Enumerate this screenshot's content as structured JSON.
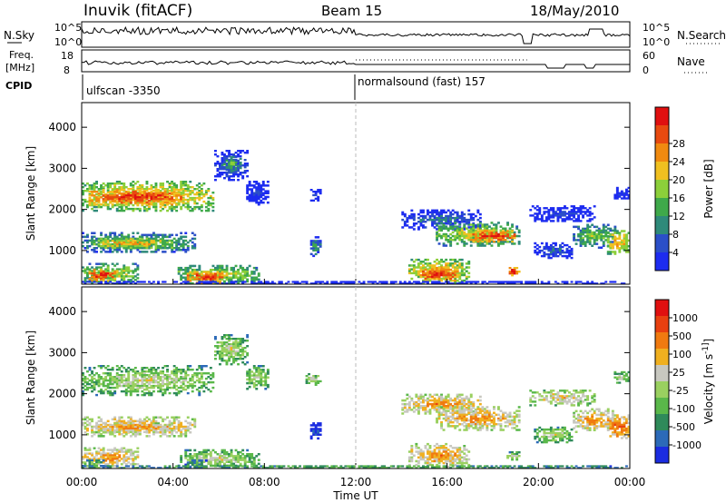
{
  "header": {
    "station": "Inuvik  (fitACF)",
    "beam": "Beam 15",
    "date": "18/May/2010"
  },
  "params": {
    "nsky_label": "N.Sky",
    "nsearch_label": "N.Search",
    "freq_label_1": "Freq.",
    "freq_label_2": "[MHz]",
    "nave_label": "Nave",
    "cpid_label": "CPID",
    "left_top_tick_a": "10^5",
    "left_top_tick_b": "10^0",
    "right_top_tick_a": "10^5",
    "right_top_tick_b": "10^0",
    "freq_tick_a": "18",
    "freq_tick_b": "8",
    "nave_tick_a": "60",
    "nave_tick_b": "0",
    "cpid_1": "ulfscan -3350",
    "cpid_2": "normalsound (fast) 157"
  },
  "colors": {
    "power": [
      "#1d2cf0",
      "#2b4fc8",
      "#2f8a7a",
      "#3fa94a",
      "#8ccf3a",
      "#f0c020",
      "#f08a10",
      "#e84a10",
      "#e01010"
    ],
    "velocity": [
      "#1b2ce0",
      "#2c6ab8",
      "#2f8a5a",
      "#5ab84a",
      "#9ad060",
      "#c8c8c0",
      "#f0b020",
      "#f07a10",
      "#e84010",
      "#e01010"
    ]
  },
  "chart_data": [
    {
      "type": "heatmap",
      "title": "Power",
      "ylabel": "Slant Range [km]",
      "xlabel": "",
      "ylim": [
        180,
        4600
      ],
      "yticks": [
        "1000",
        "2000",
        "3000",
        "4000"
      ],
      "colorbar_label": "Power [dB]",
      "colorbar_ticks": [
        "4",
        "8",
        "12",
        "16",
        "20",
        "24",
        "28"
      ],
      "regions": [
        {
          "t0": 0.0,
          "t1": 5.8,
          "r0": 1950,
          "r1": 2700,
          "level": 6
        },
        {
          "t0": 0.3,
          "t1": 4.5,
          "r0": 2100,
          "r1": 2500,
          "level": 8
        },
        {
          "t0": 0.0,
          "t1": 5.0,
          "r0": 950,
          "r1": 1450,
          "level": 4
        },
        {
          "t0": 0.5,
          "t1": 4.0,
          "r0": 1050,
          "r1": 1300,
          "level": 6
        },
        {
          "t0": 0.0,
          "t1": 2.5,
          "r0": 180,
          "r1": 700,
          "level": 5
        },
        {
          "t0": 0.3,
          "t1": 1.5,
          "r0": 250,
          "r1": 550,
          "level": 8
        },
        {
          "t0": 4.2,
          "t1": 7.8,
          "r0": 180,
          "r1": 650,
          "level": 5
        },
        {
          "t0": 4.6,
          "t1": 6.2,
          "r0": 200,
          "r1": 500,
          "level": 8
        },
        {
          "t0": 5.8,
          "t1": 7.3,
          "r0": 2700,
          "r1": 3450,
          "level": 2
        },
        {
          "t0": 6.2,
          "t1": 7.0,
          "r0": 2900,
          "r1": 3300,
          "level": 4
        },
        {
          "t0": 7.2,
          "t1": 8.2,
          "r0": 2100,
          "r1": 2700,
          "level": 1
        },
        {
          "t0": 10.0,
          "t1": 10.5,
          "r0": 850,
          "r1": 1350,
          "level": 3
        },
        {
          "t0": 10.0,
          "t1": 10.5,
          "r0": 2200,
          "r1": 2500,
          "level": 1
        },
        {
          "t0": 14.0,
          "t1": 17.5,
          "r0": 1500,
          "r1": 2000,
          "level": 2
        },
        {
          "t0": 15.5,
          "t1": 19.2,
          "r0": 1100,
          "r1": 1700,
          "level": 5
        },
        {
          "t0": 17.0,
          "t1": 19.0,
          "r0": 1200,
          "r1": 1500,
          "level": 8
        },
        {
          "t0": 14.3,
          "t1": 17.0,
          "r0": 200,
          "r1": 800,
          "level": 6
        },
        {
          "t0": 14.8,
          "t1": 16.5,
          "r0": 250,
          "r1": 600,
          "level": 8
        },
        {
          "t0": 18.6,
          "t1": 19.2,
          "r0": 380,
          "r1": 600,
          "level": 8
        },
        {
          "t0": 21.5,
          "t1": 23.4,
          "r0": 1050,
          "r1": 1650,
          "level": 4
        },
        {
          "t0": 23.0,
          "t1": 24.0,
          "r0": 900,
          "r1": 1500,
          "level": 6
        },
        {
          "t0": 23.3,
          "t1": 24.0,
          "r0": 2250,
          "r1": 2550,
          "level": 1
        },
        {
          "t0": 19.8,
          "t1": 21.5,
          "r0": 800,
          "r1": 1200,
          "level": 2
        },
        {
          "t0": 19.6,
          "t1": 22.5,
          "r0": 1700,
          "r1": 2100,
          "level": 1
        },
        {
          "t0": 0.0,
          "t1": 24.0,
          "r0": 180,
          "r1": 260,
          "level": 0
        }
      ]
    },
    {
      "type": "heatmap",
      "title": "Velocity",
      "ylabel": "Slant Range [km]",
      "xlabel": "Time UT",
      "ylim": [
        180,
        4600
      ],
      "yticks": [
        "1000",
        "2000",
        "3000",
        "4000"
      ],
      "xticks": [
        "00:00",
        "04:00",
        "08:00",
        "12:00",
        "16:00",
        "20:00",
        "00:00"
      ],
      "colorbar_label": "Velocity [m s^-1]",
      "colorbar_ticks": [
        "1000",
        "500",
        "100",
        "25",
        "-25",
        "-100",
        "-500",
        "-1000"
      ],
      "regions": [
        {
          "t0": 0.0,
          "t1": 5.8,
          "r0": 1950,
          "r1": 2700,
          "level": 5
        },
        {
          "t0": 0.0,
          "t1": 5.0,
          "r0": 950,
          "r1": 1450,
          "level": 7
        },
        {
          "t0": 0.5,
          "t1": 4.0,
          "r0": 1050,
          "r1": 1300,
          "level": 7
        },
        {
          "t0": 0.0,
          "t1": 2.5,
          "r0": 180,
          "r1": 700,
          "level": 7
        },
        {
          "t0": 0.0,
          "t1": 1.0,
          "r0": 180,
          "r1": 400,
          "level": 4
        },
        {
          "t0": 4.2,
          "t1": 7.8,
          "r0": 180,
          "r1": 650,
          "level": 5
        },
        {
          "t0": 4.5,
          "t1": 5.5,
          "r0": 200,
          "r1": 400,
          "level": 3
        },
        {
          "t0": 5.8,
          "t1": 7.3,
          "r0": 2700,
          "r1": 3450,
          "level": 5
        },
        {
          "t0": 7.2,
          "t1": 8.2,
          "r0": 2100,
          "r1": 2700,
          "level": 5
        },
        {
          "t0": 10.0,
          "t1": 10.5,
          "r0": 850,
          "r1": 1350,
          "level": 1
        },
        {
          "t0": 9.8,
          "t1": 10.5,
          "r0": 2200,
          "r1": 2500,
          "level": 5
        },
        {
          "t0": 14.0,
          "t1": 17.5,
          "r0": 1500,
          "r1": 2000,
          "level": 7
        },
        {
          "t0": 15.5,
          "t1": 19.2,
          "r0": 1100,
          "r1": 1700,
          "level": 7
        },
        {
          "t0": 14.3,
          "t1": 17.0,
          "r0": 200,
          "r1": 800,
          "level": 7
        },
        {
          "t0": 18.6,
          "t1": 19.2,
          "r0": 380,
          "r1": 600,
          "level": 5
        },
        {
          "t0": 21.5,
          "t1": 23.4,
          "r0": 1050,
          "r1": 1650,
          "level": 7
        },
        {
          "t0": 23.0,
          "t1": 24.0,
          "r0": 900,
          "r1": 1500,
          "level": 8
        },
        {
          "t0": 23.3,
          "t1": 24.0,
          "r0": 2250,
          "r1": 2550,
          "level": 5
        },
        {
          "t0": 19.8,
          "t1": 21.5,
          "r0": 800,
          "r1": 1200,
          "level": 5
        },
        {
          "t0": 19.6,
          "t1": 22.5,
          "r0": 1700,
          "r1": 2100,
          "level": 6
        },
        {
          "t0": 0.0,
          "t1": 24.0,
          "r0": 180,
          "r1": 260,
          "level": 4
        }
      ]
    }
  ]
}
